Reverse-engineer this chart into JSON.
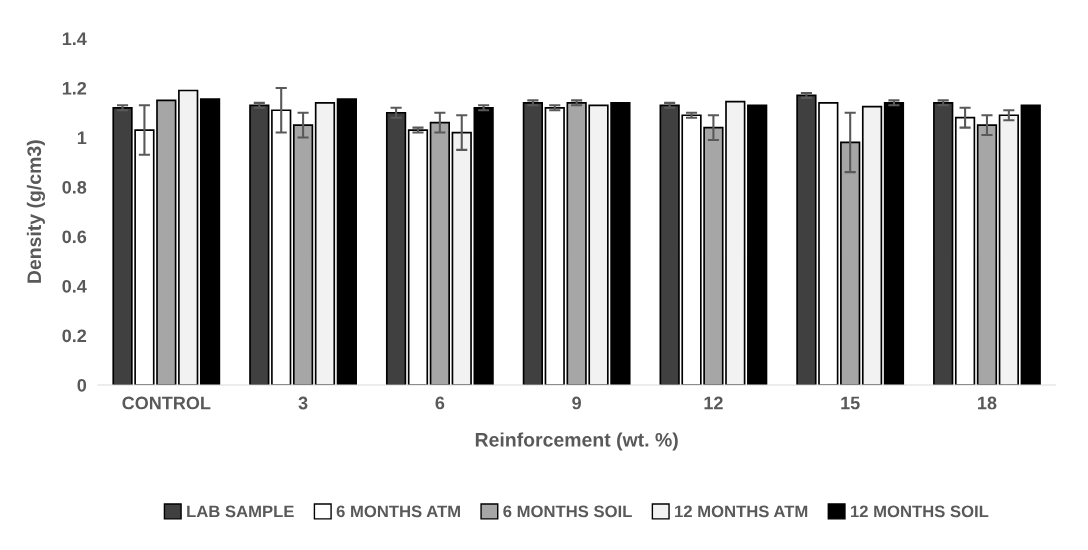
{
  "chart_data": {
    "type": "bar",
    "xlabel": "Reinforcement (wt. %)",
    "ylabel": "Density (g/cm3)",
    "categories": [
      "CONTROL",
      "3",
      "6",
      "9",
      "12",
      "15",
      "18"
    ],
    "series": [
      {
        "name": "LAB SAMPLE",
        "color": "#404040",
        "values": [
          1.12,
          1.13,
          1.1,
          1.14,
          1.13,
          1.17,
          1.14
        ],
        "errors": [
          0.01,
          0.01,
          0.02,
          0.01,
          0.01,
          0.01,
          0.01
        ]
      },
      {
        "name": "6 MONTHS ATM",
        "color": "#ffffff",
        "values": [
          1.03,
          1.11,
          1.03,
          1.12,
          1.09,
          1.14,
          1.08
        ],
        "errors": [
          0.1,
          0.09,
          0.01,
          0.01,
          0.01,
          null,
          0.04
        ]
      },
      {
        "name": "6 MONTHS SOIL",
        "color": "#a6a6a6",
        "values": [
          1.15,
          1.05,
          1.06,
          1.14,
          1.04,
          0.98,
          1.05
        ],
        "errors": [
          null,
          0.05,
          0.04,
          0.01,
          0.05,
          0.12,
          0.04
        ]
      },
      {
        "name": "12 MONTHS ATM",
        "color": "#f2f2f2",
        "values": [
          1.19,
          1.14,
          1.02,
          1.13,
          1.145,
          1.125,
          1.09
        ],
        "errors": [
          null,
          null,
          0.07,
          null,
          null,
          null,
          0.02
        ]
      },
      {
        "name": "12 MONTHS SOIL",
        "color": "#000000",
        "values": [
          1.155,
          1.155,
          1.12,
          1.14,
          1.13,
          1.14,
          1.13
        ],
        "errors": [
          null,
          null,
          0.01,
          null,
          null,
          0.01,
          null
        ]
      }
    ],
    "ylim": [
      0,
      1.4
    ],
    "yticks": [
      0,
      0.2,
      0.4,
      0.6,
      0.8,
      1,
      1.2,
      1.4
    ],
    "legend": "bottom",
    "grid": false
  }
}
